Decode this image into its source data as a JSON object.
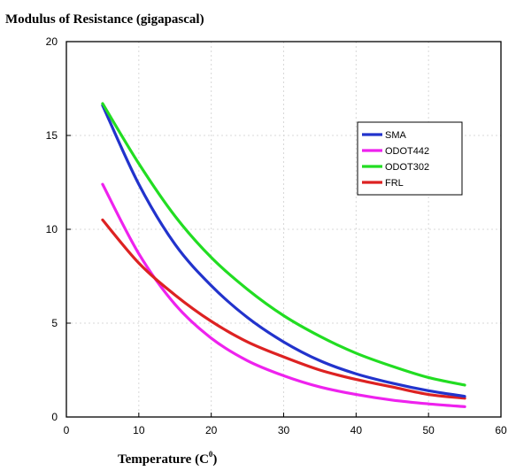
{
  "chart_data": {
    "type": "line",
    "title": "",
    "ylabel": "Modulus of Resistance (gigapascal)",
    "xlabel_main": "Temperature (C",
    "xlabel_sup": "0",
    "xlabel_close": ")",
    "xlim": [
      0,
      60
    ],
    "ylim": [
      0,
      20
    ],
    "xticks": [
      0,
      10,
      20,
      30,
      40,
      50,
      60
    ],
    "yticks": [
      0,
      5,
      10,
      15,
      20
    ],
    "grid": true,
    "legend_position": "top-right",
    "x": [
      5,
      10,
      15,
      20,
      25,
      30,
      35,
      40,
      45,
      50,
      55
    ],
    "series": [
      {
        "name": "SMA",
        "color": "#2233cc",
        "values": [
          16.6,
          12.4,
          9.2,
          7.0,
          5.3,
          4.0,
          3.0,
          2.3,
          1.8,
          1.4,
          1.1
        ]
      },
      {
        "name": "ODOT442",
        "color": "#ee22ee",
        "values": [
          12.4,
          8.7,
          6.0,
          4.2,
          3.0,
          2.2,
          1.6,
          1.2,
          0.9,
          0.7,
          0.55
        ]
      },
      {
        "name": "ODOT302",
        "color": "#22dd22",
        "values": [
          16.7,
          13.5,
          10.7,
          8.5,
          6.8,
          5.4,
          4.3,
          3.4,
          2.7,
          2.1,
          1.7
        ]
      },
      {
        "name": "FRL",
        "color": "#dd2222",
        "values": [
          10.5,
          8.2,
          6.5,
          5.1,
          4.0,
          3.2,
          2.5,
          2.0,
          1.6,
          1.2,
          1.0
        ]
      }
    ]
  }
}
